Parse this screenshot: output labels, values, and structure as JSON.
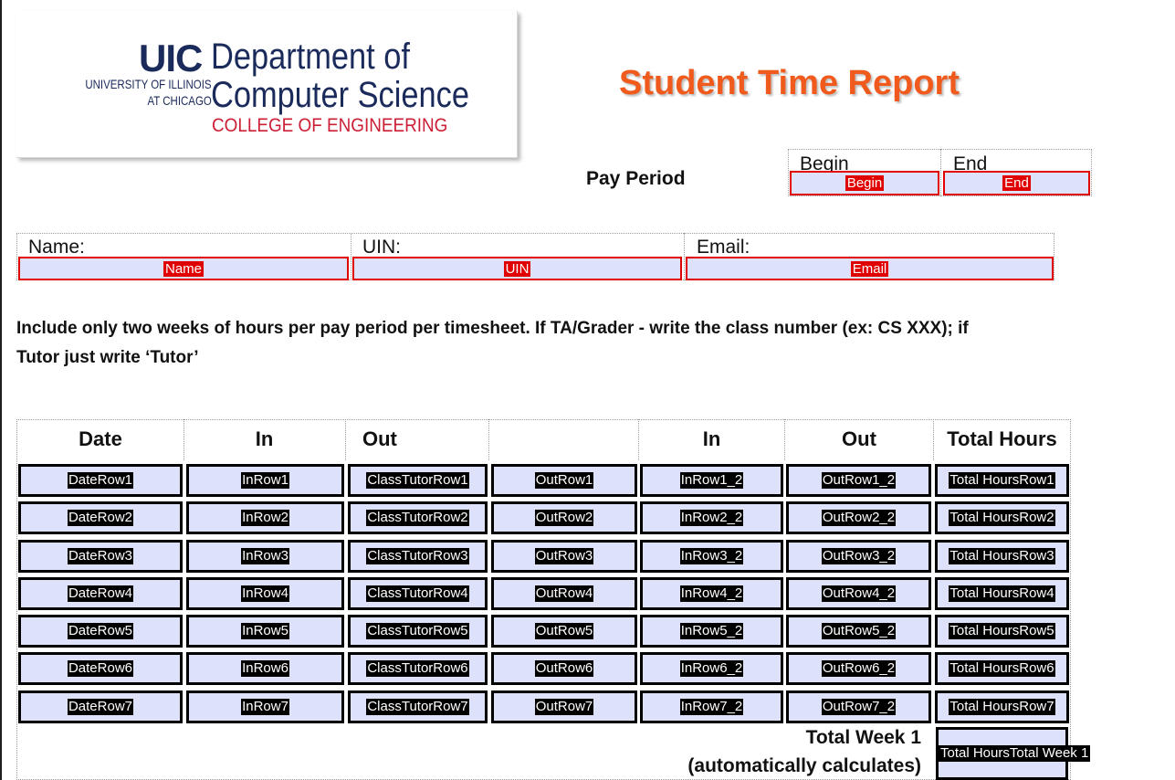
{
  "logo": {
    "uic": "UIC",
    "university_line1": "UNIVERSITY OF ILLINOIS",
    "university_line2": "AT CHICAGO",
    "department_line1": "Department of",
    "department_line2": "Computer Science",
    "college": "COLLEGE OF ENGINEERING"
  },
  "title": "Student Time Report",
  "pay_period": {
    "label": "Pay Period",
    "begin_label": "Begin",
    "begin_field": "Begin",
    "end_label": "End",
    "end_field": "End"
  },
  "info": {
    "name_label": "Name:",
    "name_field": "Name",
    "uin_label": "UIN:",
    "uin_field": "UIN",
    "email_label": "Email:",
    "email_field": "Email"
  },
  "instructions_line1": "Include only two weeks of hours per pay period per timesheet.  If TA/Grader - write the class number (ex: CS XXX); if",
  "instructions_line2": "Tutor just write ‘Tutor’",
  "table": {
    "headers": [
      "Date",
      "In",
      "Out",
      "",
      "In",
      "Out",
      "Total Hours"
    ],
    "rows": [
      [
        "DateRow1",
        "InRow1",
        "ClassTutorRow1",
        "OutRow1",
        "InRow1_2",
        "OutRow1_2",
        "Total HoursRow1"
      ],
      [
        "DateRow2",
        "InRow2",
        "ClassTutorRow2",
        "OutRow2",
        "InRow2_2",
        "OutRow2_2",
        "Total HoursRow2"
      ],
      [
        "DateRow3",
        "InRow3",
        "ClassTutorRow3",
        "OutRow3",
        "InRow3_2",
        "OutRow3_2",
        "Total HoursRow3"
      ],
      [
        "DateRow4",
        "InRow4",
        "ClassTutorRow4",
        "OutRow4",
        "InRow4_2",
        "OutRow4_2",
        "Total HoursRow4"
      ],
      [
        "DateRow5",
        "InRow5",
        "ClassTutorRow5",
        "OutRow5",
        "InRow5_2",
        "OutRow5_2",
        "Total HoursRow5"
      ],
      [
        "DateRow6",
        "InRow6",
        "ClassTutorRow6",
        "OutRow6",
        "InRow6_2",
        "OutRow6_2",
        "Total HoursRow6"
      ],
      [
        "DateRow7",
        "InRow7",
        "ClassTutorRow7",
        "OutRow7",
        "InRow7_2",
        "OutRow7_2",
        "Total HoursRow7"
      ]
    ]
  },
  "total_week": {
    "label": "Total Week 1",
    "note": "(automatically calculates)",
    "field": "Total HoursTotal Week 1"
  },
  "colors": {
    "title": "#f05a1c",
    "field_fill": "#dde2fa",
    "required_border": "#e00000"
  }
}
